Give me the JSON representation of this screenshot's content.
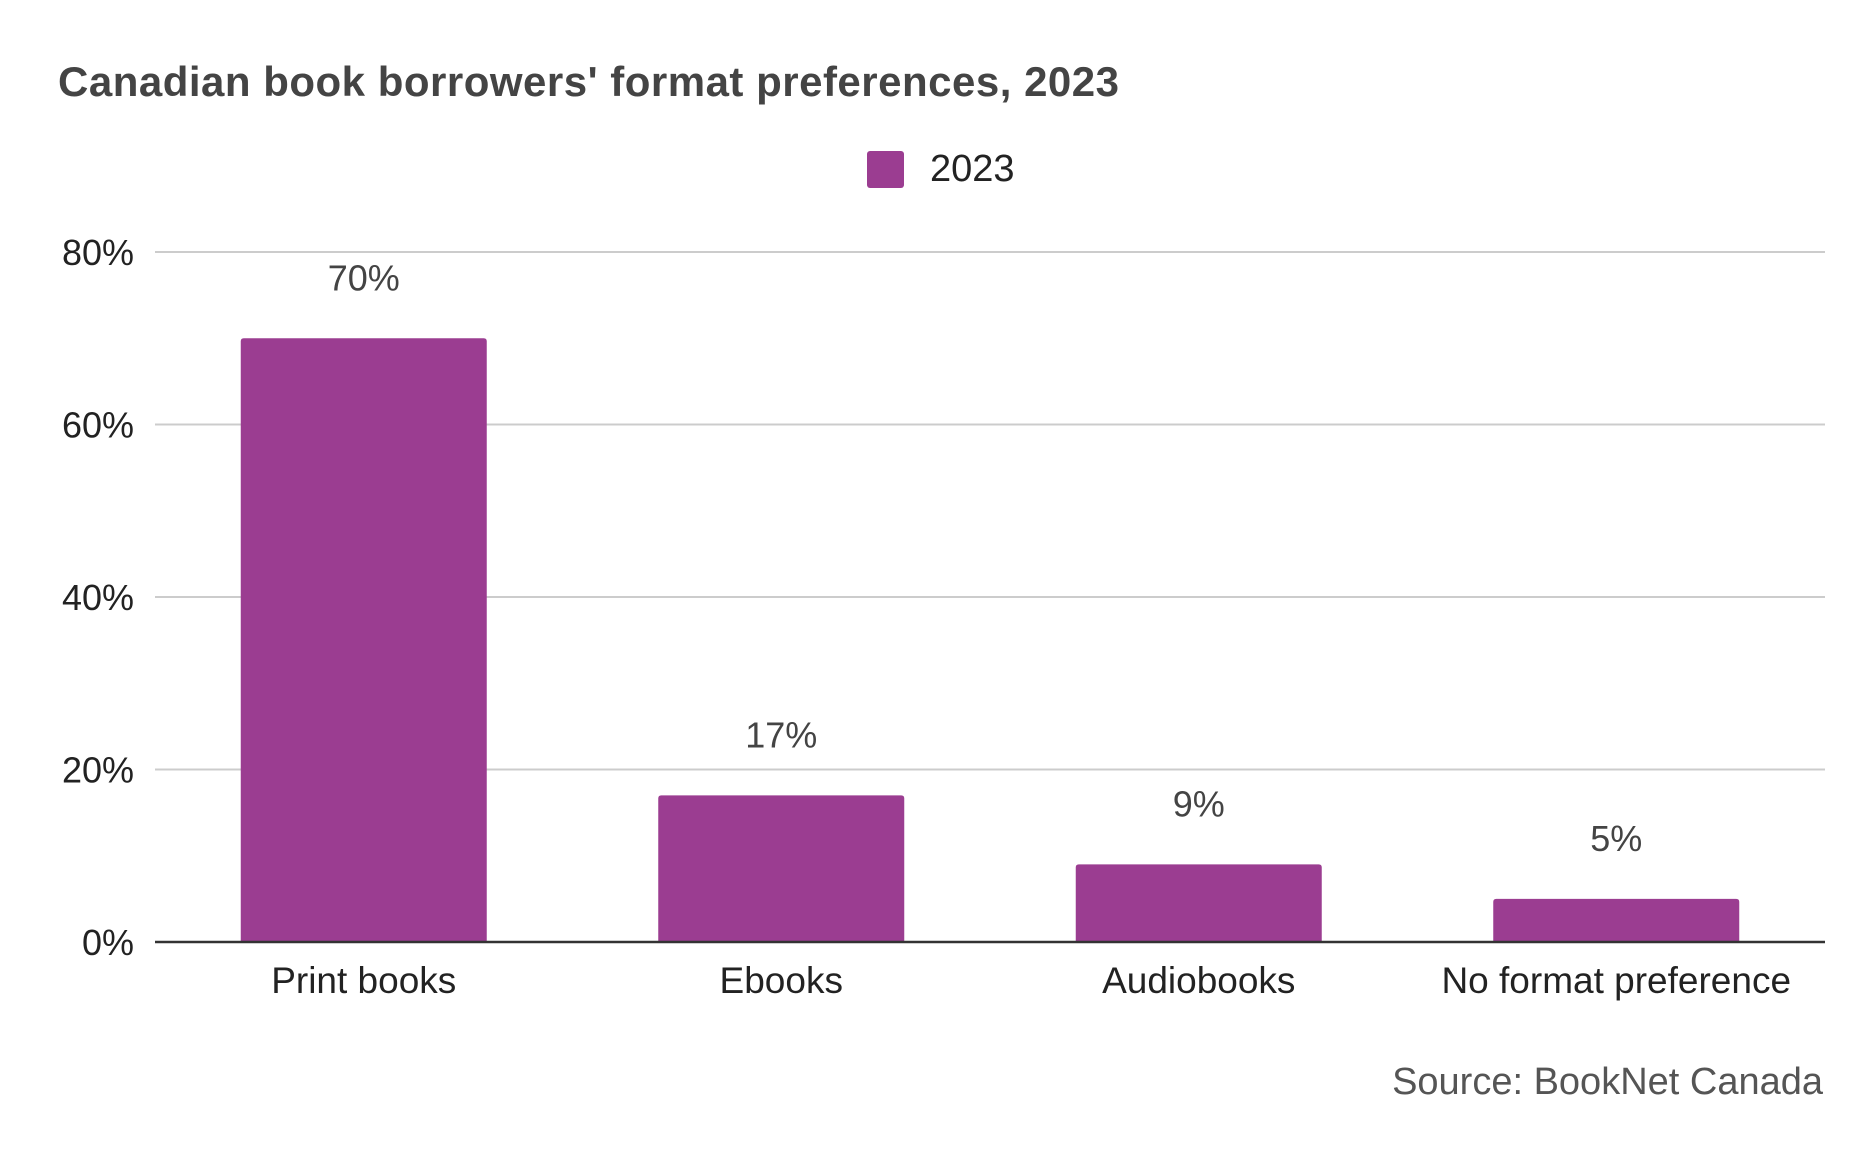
{
  "chart_data": {
    "type": "bar",
    "title": "Canadian book borrowers' format preferences, 2023",
    "categories": [
      "Print books",
      "Ebooks",
      "Audiobooks",
      "No format preference"
    ],
    "series": [
      {
        "name": "2023",
        "values": [
          70,
          17,
          9,
          5
        ],
        "data_labels": [
          "70%",
          "17%",
          "9%",
          "5%"
        ],
        "color": "#9b3d91"
      }
    ],
    "ylim": [
      0,
      80
    ],
    "yticks": [
      0,
      20,
      40,
      60,
      80
    ],
    "ytick_labels": [
      "0%",
      "20%",
      "40%",
      "60%",
      "80%"
    ],
    "xlabel": "",
    "ylabel": "",
    "grid": true,
    "legend_position": "top-center",
    "source": "Source: BookNet Canada"
  },
  "colors": {
    "bar": "#9b3d91",
    "gridline": "#cccccc",
    "baseline": "#333333",
    "title_text": "#444444",
    "label_text": "#222222",
    "data_label_text": "#444444"
  }
}
